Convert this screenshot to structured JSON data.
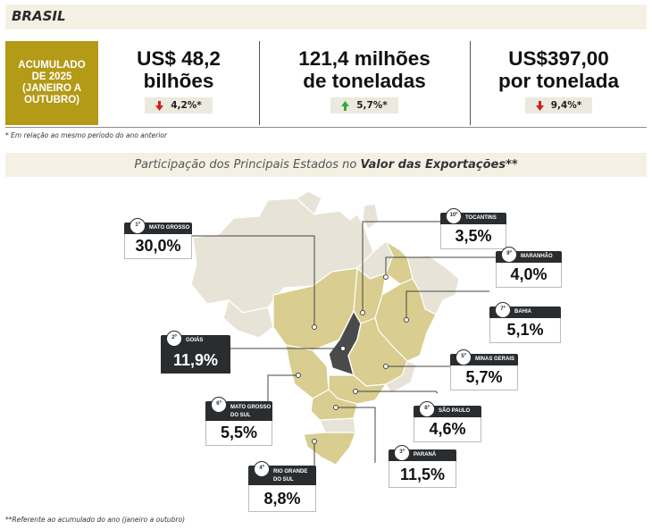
{
  "header": {
    "title": "BRASIL"
  },
  "period_box": {
    "text": "ACUMULADO\nDE 2025\n(JANEIRO A\nOUTUBRO)"
  },
  "kpis": [
    {
      "value": "US$ 48,2\nbilhões",
      "change": "4,2%*",
      "direction": "down"
    },
    {
      "value": "121,4 milhões\nde toneladas",
      "change": "5,7%*",
      "direction": "up"
    },
    {
      "value": "US$397,00\npor tonelada",
      "change": "9,4%*",
      "direction": "down"
    }
  ],
  "notes": {
    "comparison": "* Em relação ao mesmo período do ano anterior",
    "reference": "**Referente ao acumulado do ano (janeiro a outubro)"
  },
  "section_title": {
    "plain": "Participação dos Principais Estados no ",
    "bold": "Valor das Exportações**"
  },
  "colors": {
    "accent": "#b39a17",
    "highlight_state": "#4a4a4a",
    "ranked_state": "#d9cd8f",
    "other_state": "#e7e3d6",
    "down": "#d0201a",
    "up": "#3aa63a"
  },
  "chart_data": {
    "type": "map",
    "title": "Participação dos Principais Estados no Valor das Exportações**",
    "unit": "%",
    "series": [
      {
        "rank": "1º",
        "state": "MATO GROSSO",
        "value": 30.0,
        "label": "30,0%"
      },
      {
        "rank": "2º",
        "state": "GOIÁS",
        "value": 11.9,
        "label": "11,9%"
      },
      {
        "rank": "3º",
        "state": "PARANÁ",
        "value": 11.5,
        "label": "11,5%"
      },
      {
        "rank": "4º",
        "state": "RIO GRANDE\nDO SUL",
        "value": 8.8,
        "label": "8,8%"
      },
      {
        "rank": "5º",
        "state": "MINAS GERAIS",
        "value": 5.7,
        "label": "5,7%"
      },
      {
        "rank": "6º",
        "state": "MATO GROSSO\nDO SUL",
        "value": 5.5,
        "label": "5,5%"
      },
      {
        "rank": "7º",
        "state": "BAHIA",
        "value": 5.1,
        "label": "5,1%"
      },
      {
        "rank": "8º",
        "state": "SÃO PAULO",
        "value": 4.6,
        "label": "4,6%"
      },
      {
        "rank": "9º",
        "state": "MARANHÃO",
        "value": 4.0,
        "label": "4,0%"
      },
      {
        "rank": "10º",
        "state": "TOCANTINS",
        "value": 3.5,
        "label": "3,5%"
      }
    ]
  }
}
